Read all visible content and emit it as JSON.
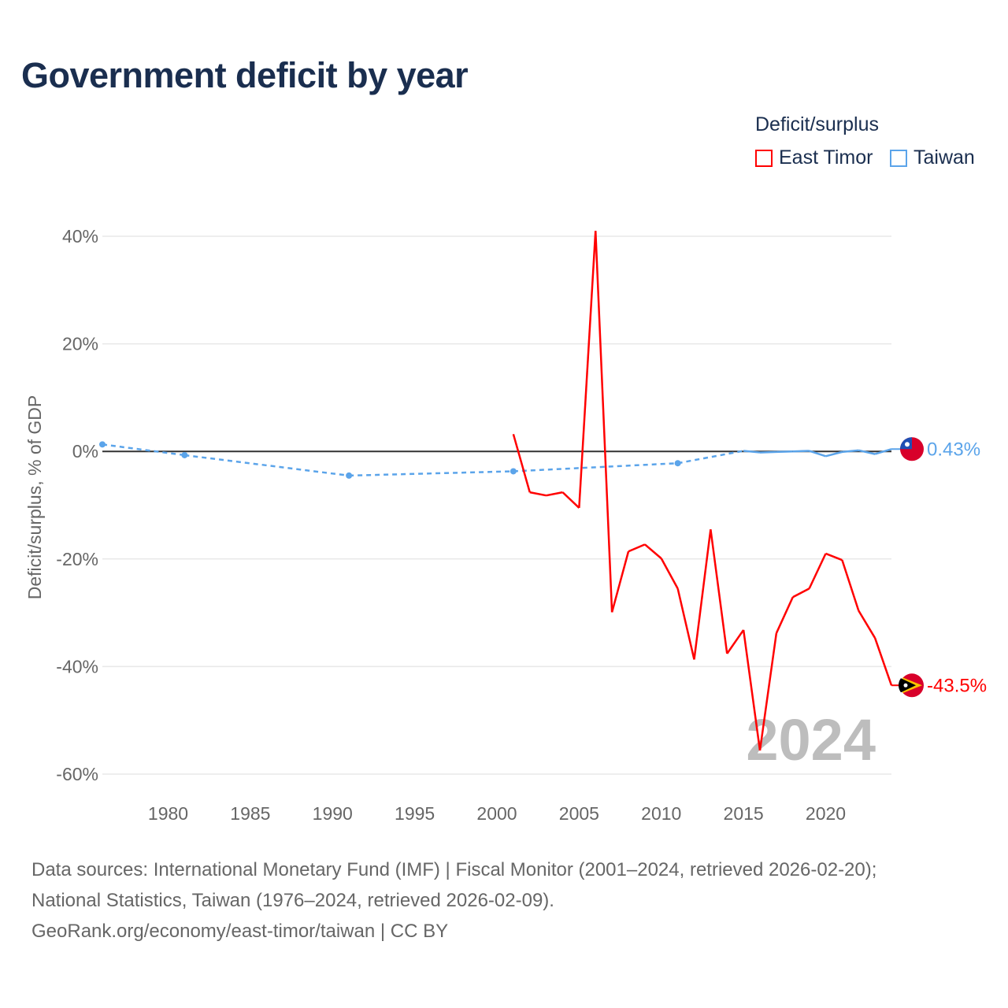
{
  "chart_data": {
    "type": "line",
    "title": "Government deficit by year",
    "ylabel": "Deficit/surplus, % of GDP",
    "xlabel": "",
    "xlim": [
      1976,
      2024
    ],
    "ylim": [
      -60,
      40
    ],
    "xticks": [
      1980,
      1985,
      1990,
      1995,
      2000,
      2005,
      2010,
      2015,
      2020
    ],
    "yticks": [
      -60,
      -40,
      -20,
      0,
      20,
      40
    ],
    "ytick_labels": [
      "-60%",
      "-40%",
      "-20%",
      "0%",
      "20%",
      "40%"
    ],
    "grid": true,
    "legend_title": "Deficit/surplus",
    "legend_position": "top-right",
    "year_watermark": "2024",
    "series": [
      {
        "name": "East Timor",
        "color": "#ff0000",
        "end_label": "-43.5%",
        "x": [
          2001,
          2002,
          2003,
          2004,
          2005,
          2006,
          2007,
          2008,
          2009,
          2010,
          2011,
          2012,
          2013,
          2014,
          2015,
          2016,
          2017,
          2018,
          2019,
          2020,
          2021,
          2022,
          2023,
          2024
        ],
        "y": [
          3.2,
          -7.6,
          -8.2,
          -7.6,
          -10.5,
          41.0,
          -29.9,
          -18.6,
          -17.3,
          -19.9,
          -25.5,
          -38.7,
          -14.5,
          -37.6,
          -33.2,
          -55.6,
          -33.8,
          -27.1,
          -25.5,
          -19.0,
          -20.2,
          -29.6,
          -34.7,
          -43.5
        ]
      },
      {
        "name": "Taiwan",
        "color": "#5ba4ea",
        "end_label": "0.43%",
        "x": [
          1976,
          1981,
          1991,
          2001,
          2011,
          2015,
          2016,
          2017,
          2018,
          2019,
          2020,
          2021,
          2022,
          2023,
          2024
        ],
        "y": [
          1.3,
          -0.7,
          -4.5,
          -3.7,
          -2.2,
          0.1,
          -0.2,
          -0.1,
          0.0,
          0.1,
          -0.9,
          -0.1,
          0.2,
          -0.5,
          0.43
        ]
      }
    ]
  },
  "sources": {
    "line1": "Data sources: International Monetary Fund (IMF) | Fiscal Monitor (2001–2024, retrieved 2026-02-20);",
    "line2": "National Statistics, Taiwan (1976–2024, retrieved 2026-02-09).",
    "line3": "GeoRank.org/economy/east-timor/taiwan | CC BY"
  }
}
